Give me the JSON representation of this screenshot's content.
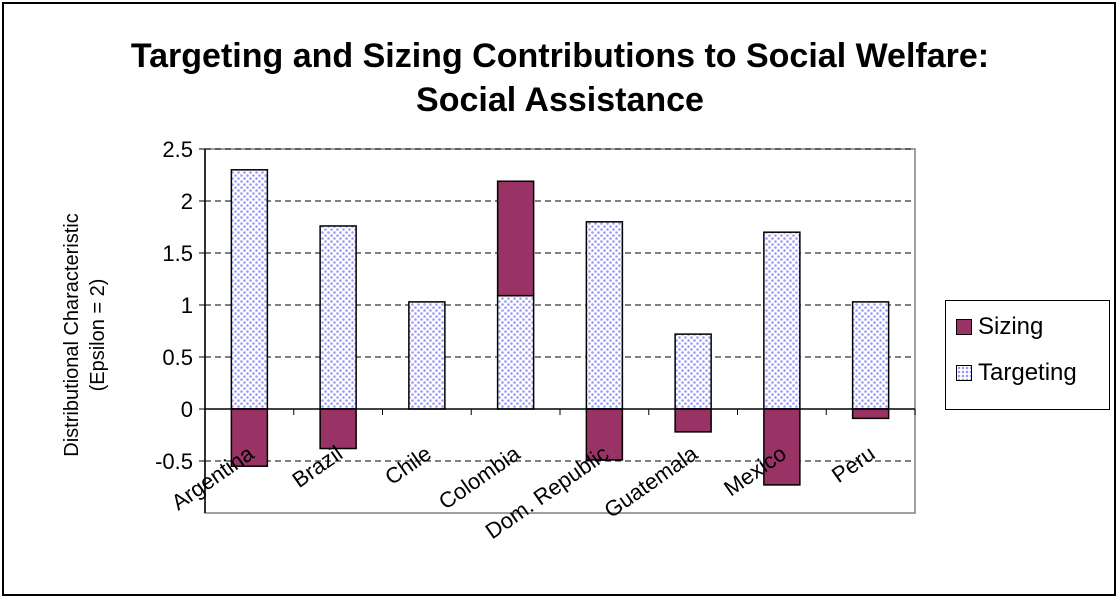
{
  "chart_data": {
    "type": "bar",
    "stacked": true,
    "title": "Targeting and Sizing Contributions to Social Welfare: Social Assistance",
    "ylabel": [
      "Distributional Characteristic",
      "(Epsilon = 2)"
    ],
    "xlabel": "",
    "categories": [
      "Argentina",
      "Brazil",
      "Chile",
      "Colombia",
      "Dom. Republic",
      "Guatemala",
      "Mexico",
      "Peru"
    ],
    "series": [
      {
        "name": "Sizing",
        "values": [
          -0.55,
          -0.38,
          0.0,
          1.1,
          -0.49,
          -0.22,
          -0.73,
          -0.09
        ],
        "color": "#993366"
      },
      {
        "name": "Targeting",
        "values": [
          2.3,
          1.76,
          1.03,
          1.09,
          1.8,
          0.72,
          1.7,
          1.03
        ],
        "color": "#9999ff"
      }
    ],
    "ylim": [
      -1.0,
      2.5
    ],
    "yticks": [
      "-0.5",
      "0",
      "0.5",
      "1",
      "1.5",
      "2",
      "2.5"
    ],
    "grid": true,
    "legend_position": "right"
  }
}
